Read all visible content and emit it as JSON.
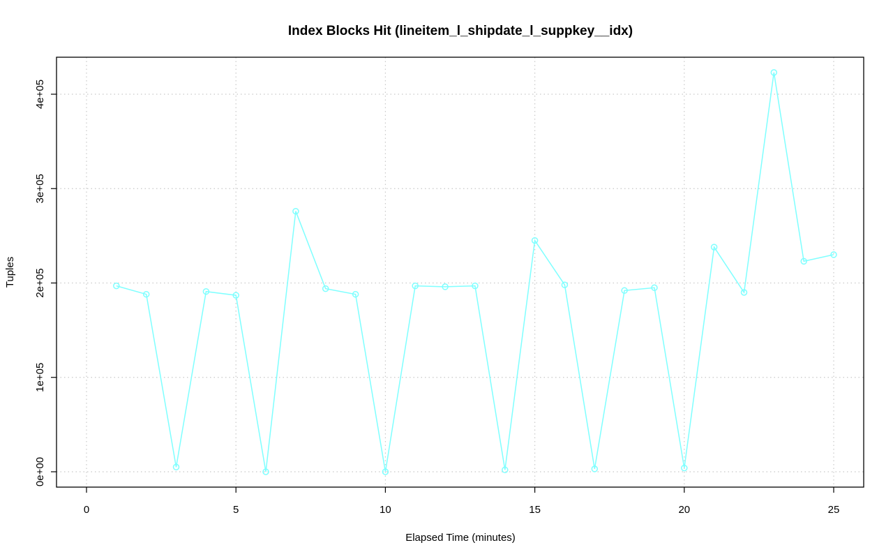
{
  "chart_data": {
    "type": "line",
    "title": "Index Blocks Hit (lineitem_l_shipdate_l_suppkey__idx)",
    "xlabel": "Elapsed Time (minutes)",
    "ylabel": "Tuples",
    "xlim": [
      0,
      25
    ],
    "ylim": [
      0,
      420000
    ],
    "x_ticks": [
      0,
      5,
      10,
      15,
      20,
      25
    ],
    "x_tick_labels": [
      "0",
      "5",
      "10",
      "15",
      "20",
      "25"
    ],
    "y_ticks": [
      0,
      100000,
      200000,
      300000,
      400000
    ],
    "y_tick_labels": [
      "0e+00",
      "1e+05",
      "2e+05",
      "3e+05",
      "4e+05"
    ],
    "grid": true,
    "legend": "none",
    "series": [
      {
        "color": "#7fffff",
        "marker": "open-circle",
        "x": [
          1,
          2,
          3,
          4,
          5,
          6,
          7,
          8,
          9,
          10,
          11,
          12,
          13,
          14,
          15,
          16,
          17,
          18,
          19,
          20,
          21,
          22,
          23,
          24,
          25
        ],
        "y": [
          197000,
          188000,
          5000,
          191000,
          187000,
          0,
          276000,
          194000,
          188000,
          0,
          197000,
          196000,
          197000,
          2000,
          245000,
          198000,
          3000,
          192000,
          195000,
          4000,
          238000,
          190000,
          423000,
          223000,
          230000
        ]
      }
    ]
  }
}
